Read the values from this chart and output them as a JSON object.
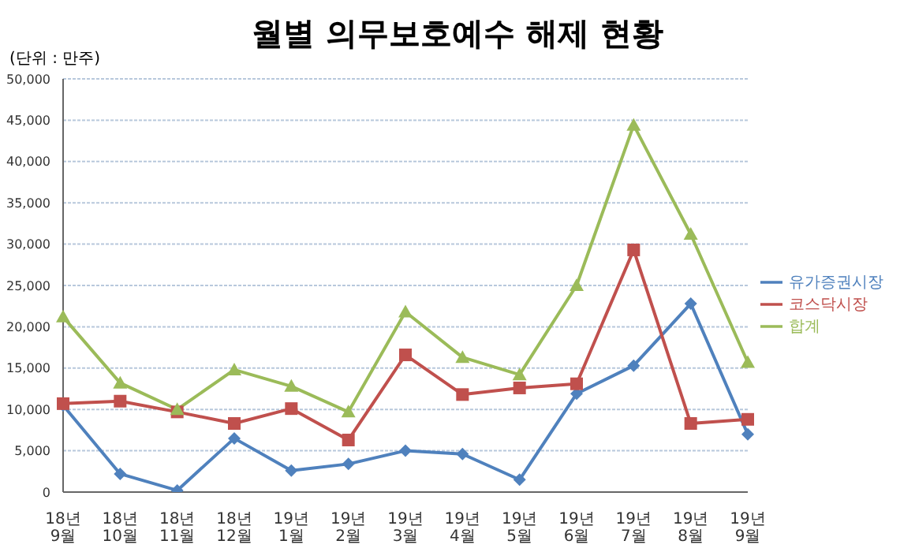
{
  "chart_data": {
    "type": "line",
    "title": "월별 의무보호예수 해제 현황",
    "ylabel": "(단위 : 만주)",
    "categories": [
      "18년 9월",
      "18년 10월",
      "18년 11월",
      "18년 12월",
      "19년 1월",
      "19년 2월",
      "19년 3월",
      "19년 4월",
      "19년 5월",
      "19년 6월",
      "19년 7월",
      "19년 8월",
      "19년 9월"
    ],
    "series": [
      {
        "name": "유가증권시장",
        "color": "#4f81bd",
        "marker": "diamond",
        "values": [
          10500,
          2200,
          200,
          6500,
          2600,
          3400,
          5000,
          4600,
          1500,
          11900,
          15300,
          22800,
          7000
        ]
      },
      {
        "name": "코스닥시장",
        "color": "#c0504d",
        "marker": "square",
        "values": [
          10700,
          11000,
          9700,
          8300,
          10100,
          6300,
          16600,
          11800,
          12600,
          13100,
          29300,
          8300,
          8800
        ]
      },
      {
        "name": "합계",
        "color": "#9bbb59",
        "marker": "triangle",
        "values": [
          21200,
          13200,
          10000,
          14800,
          12800,
          9700,
          21800,
          16300,
          14200,
          25000,
          44400,
          31200,
          15700
        ]
      }
    ],
    "ylim": [
      0,
      50000
    ],
    "yticks": [
      0,
      {
        "value": 5000,
        "label": "5,000"
      },
      {
        "value": 10000,
        "label": "10,000"
      },
      {
        "value": 15000,
        "label": "15,000"
      },
      {
        "value": 20000,
        "label": "20,000"
      },
      {
        "value": 25000,
        "label": "25,000"
      },
      {
        "value": 30000,
        "label": "30,000"
      },
      {
        "value": 35000,
        "label": "35,000"
      },
      {
        "value": 40000,
        "label": "40,000"
      },
      {
        "value": 45000,
        "label": "45,000"
      },
      {
        "value": 50000,
        "label": "50,000"
      }
    ],
    "grid": "y",
    "legend": "right"
  }
}
